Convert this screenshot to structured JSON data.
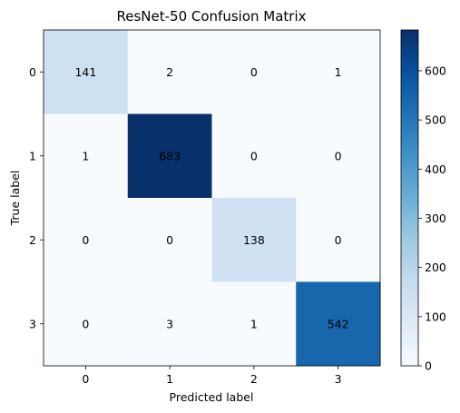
{
  "chart_data": {
    "type": "heatmap",
    "title": "ResNet-50 Confusion Matrix",
    "xlabel": "Predicted label",
    "ylabel": "True label",
    "x_categories": [
      "0",
      "1",
      "2",
      "3"
    ],
    "y_categories": [
      "0",
      "1",
      "2",
      "3"
    ],
    "values": [
      [
        141,
        2,
        0,
        1
      ],
      [
        1,
        683,
        0,
        0
      ],
      [
        0,
        0,
        138,
        0
      ],
      [
        0,
        3,
        1,
        542
      ]
    ],
    "colormap": "Blues",
    "color_range": [
      0,
      683
    ],
    "colorbar_ticks": [
      "0",
      "100",
      "200",
      "300",
      "400",
      "500",
      "600"
    ],
    "colors": {
      "low": "#f7fbff",
      "high": "#08306b",
      "text_dark": "#08306b",
      "text_light": "#f7fbff"
    }
  }
}
